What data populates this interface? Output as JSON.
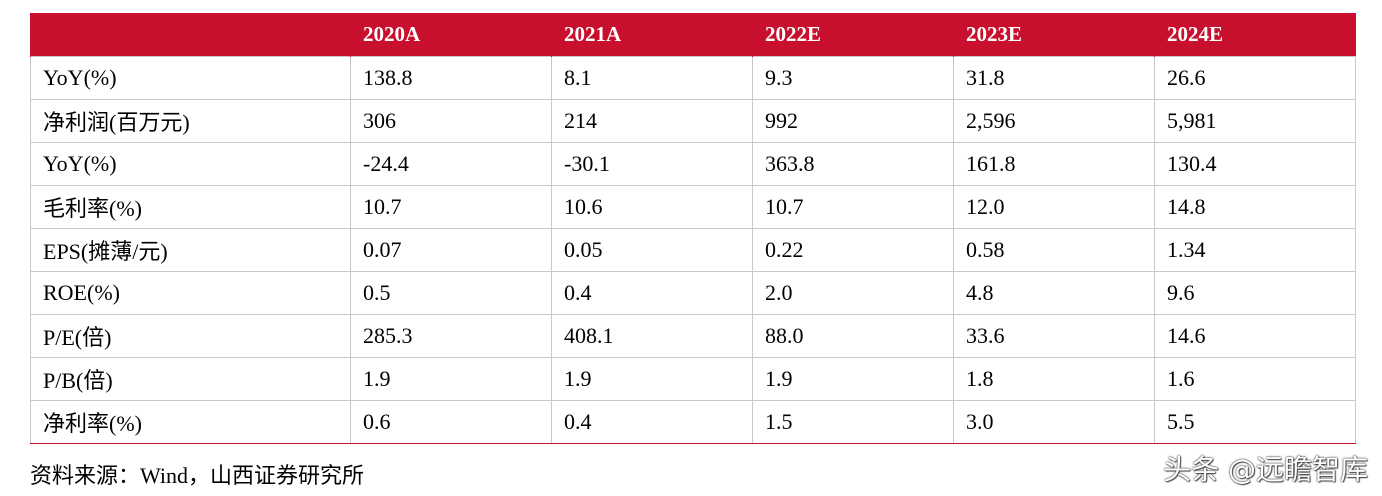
{
  "table": {
    "headers": [
      "",
      "2020A",
      "2021A",
      "2022E",
      "2023E",
      "2024E"
    ],
    "rows": [
      [
        "YoY(%)",
        "138.8",
        "8.1",
        "9.3",
        "31.8",
        "26.6"
      ],
      [
        "净利润(百万元)",
        "306",
        "214",
        "992",
        "2,596",
        "5,981"
      ],
      [
        "YoY(%)",
        "-24.4",
        "-30.1",
        "363.8",
        "161.8",
        "130.4"
      ],
      [
        "毛利率(%)",
        "10.7",
        "10.6",
        "10.7",
        "12.0",
        "14.8"
      ],
      [
        "EPS(摊薄/元)",
        "0.07",
        "0.05",
        "0.22",
        "0.58",
        "1.34"
      ],
      [
        "ROE(%)",
        "0.5",
        "0.4",
        "2.0",
        "4.8",
        "9.6"
      ],
      [
        "P/E(倍)",
        "285.3",
        "408.1",
        "88.0",
        "33.6",
        "14.6"
      ],
      [
        "P/B(倍)",
        "1.9",
        "1.9",
        "1.9",
        "1.8",
        "1.6"
      ],
      [
        "净利率(%)",
        "0.6",
        "0.4",
        "1.5",
        "3.0",
        "5.5"
      ]
    ]
  },
  "source_note": "资料来源：Wind，山西证券研究所",
  "watermark": "头条 @远瞻智库",
  "colors": {
    "header_bg": "#c8102e",
    "header_text": "#ffffff",
    "grid": "#c9c9c9"
  }
}
